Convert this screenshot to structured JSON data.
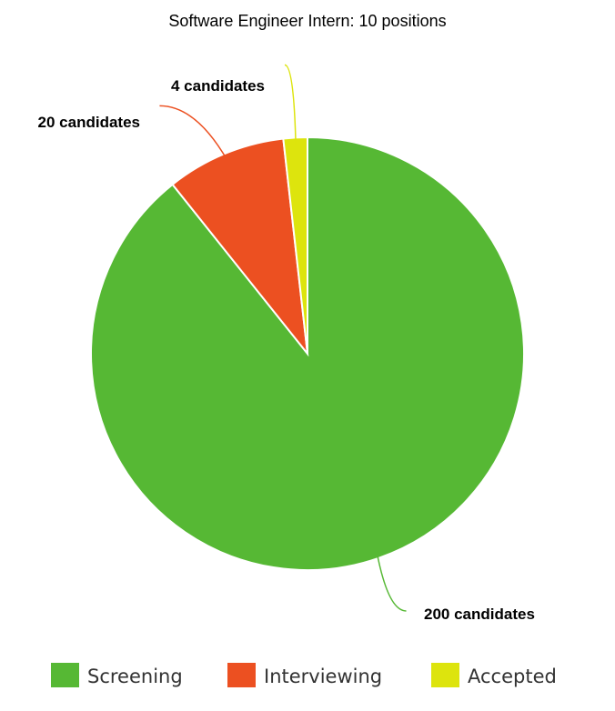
{
  "chart_data": {
    "type": "pie",
    "title": "Software Engineer Intern: 10 positions",
    "legend_position": "bottom",
    "slices": [
      {
        "name": "Screening",
        "value": 200,
        "label": "200 candidates",
        "color": "#56b834"
      },
      {
        "name": "Interviewing",
        "value": 20,
        "label": "20 candidates",
        "color": "#ec5021"
      },
      {
        "name": "Accepted",
        "value": 4,
        "label": "4 candidates",
        "color": "#dde40d"
      }
    ]
  }
}
